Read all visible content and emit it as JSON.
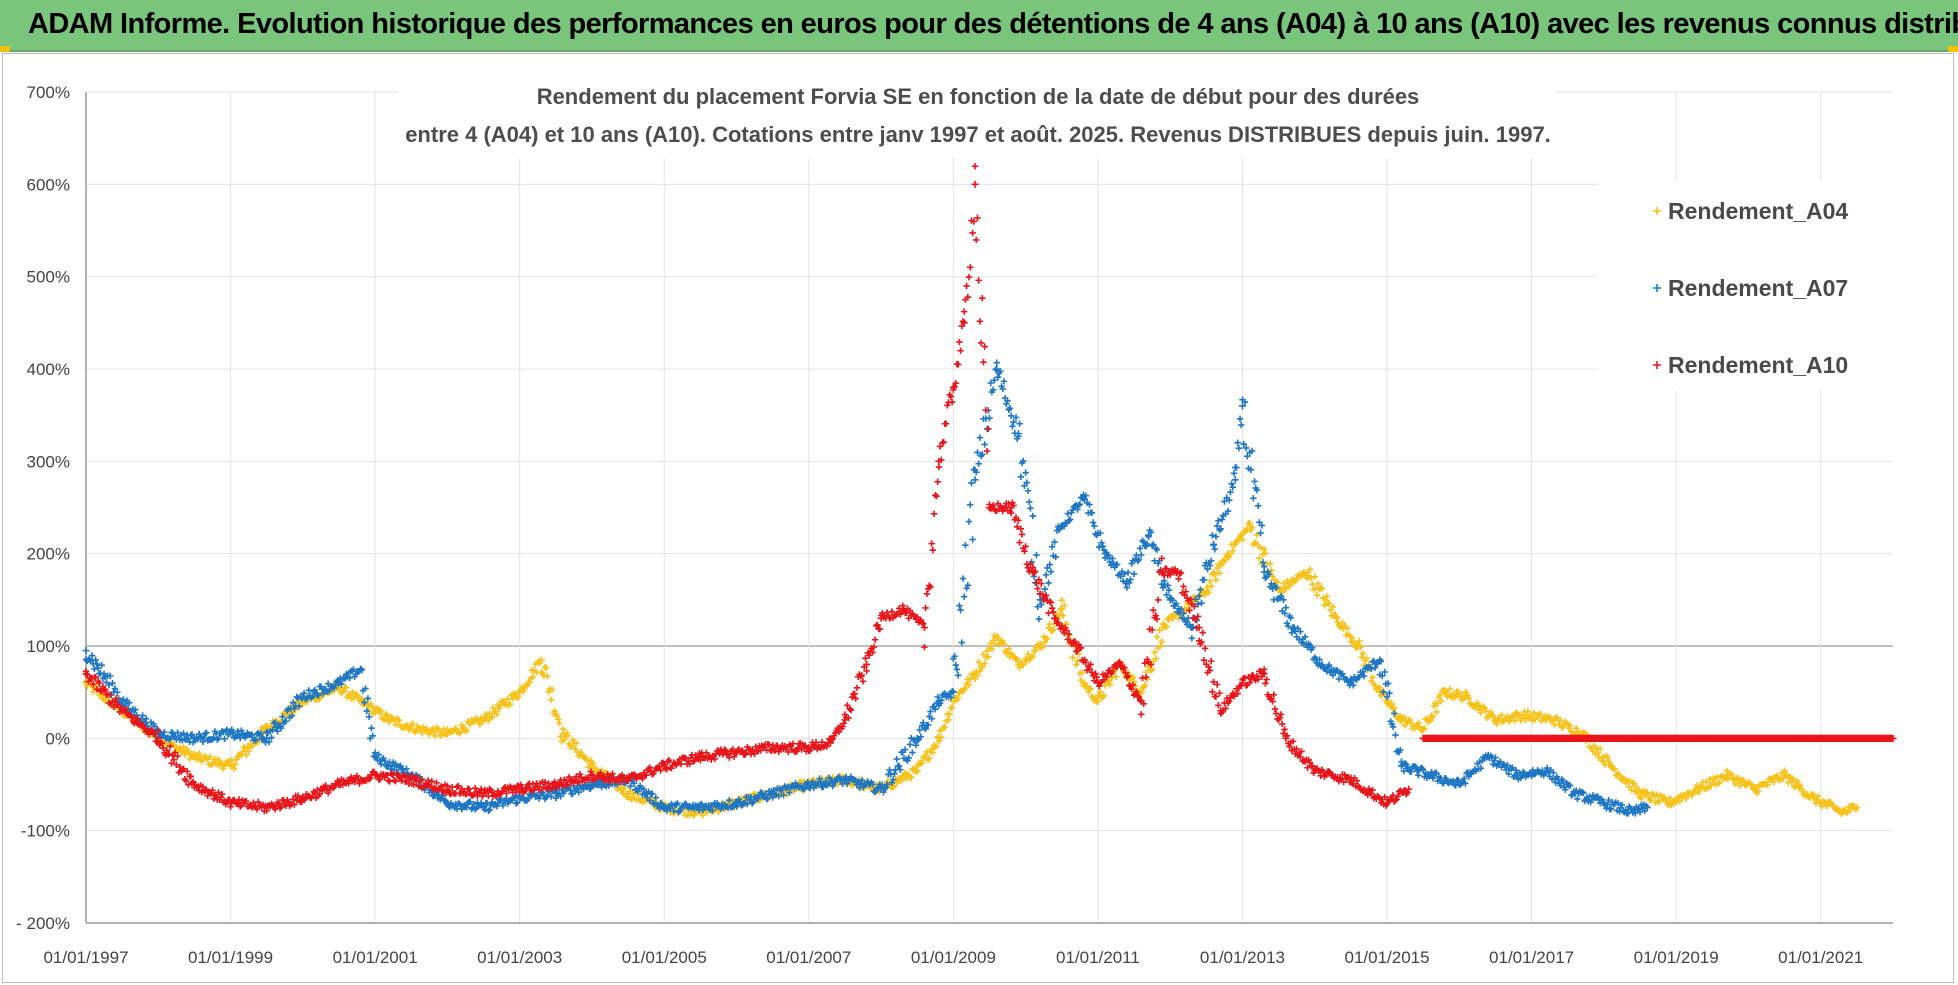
{
  "banner": {
    "title": "ADAM Informe. Evolution historique des performances en euros pour des détentions de 4 ans (A04) à 10 ans (A10) avec les revenus connus distribués"
  },
  "colors": {
    "banner_bg": "#79c57b",
    "A04": "#f7c21a",
    "A07": "#1f77c4",
    "A10": "#e8151b"
  },
  "chart_data": {
    "type": "scatter",
    "title_line1": "Rendement du placement Forvia SE en fonction de la date de début pour des durées",
    "title_line2": "entre 4 (A04) et 10 ans (A10).  Cotations entre janv 1997 et août. 2025. Revenus DISTRIBUES depuis juin. 1997.",
    "x_unit": "year",
    "xlim": [
      1997.0,
      2022.0
    ],
    "ylim": [
      -200,
      700
    ],
    "y_unit": "%",
    "grid": true,
    "legend_position": "top-right",
    "y_ticks": [
      "- 200%",
      "-100%",
      "0%",
      "100%",
      "200%",
      "300%",
      "400%",
      "500%",
      "600%",
      "700%"
    ],
    "x_ticks": [
      "01/01/1997",
      "01/01/1999",
      "01/01/2001",
      "01/01/2003",
      "01/01/2005",
      "01/01/2007",
      "01/01/2009",
      "01/01/2011",
      "01/01/2013",
      "01/01/2015",
      "01/01/2017",
      "01/01/2019",
      "01/01/2021"
    ],
    "series": [
      {
        "name": "Rendement_A04",
        "color": "#f7c21a",
        "x": [
          1997.0,
          1997.5,
          1998.0,
          1998.5,
          1999.0,
          1999.5,
          2000.0,
          2000.5,
          2000.9,
          2001.2,
          2001.6,
          2002.0,
          2002.5,
          2003.0,
          2003.3,
          2003.6,
          2004.0,
          2004.5,
          2005.0,
          2005.5,
          2006.0,
          2006.5,
          2007.0,
          2007.5,
          2008.0,
          2008.5,
          2008.8,
          2009.0,
          2009.3,
          2009.6,
          2009.9,
          2010.2,
          2010.5,
          2010.8,
          2011.0,
          2011.3,
          2011.6,
          2011.9,
          2012.2,
          2012.5,
          2012.8,
          2013.1,
          2013.5,
          2013.9,
          2014.3,
          2014.6,
          2014.9,
          2015.2,
          2015.5,
          2015.8,
          2016.1,
          2016.5,
          2016.9,
          2017.3,
          2017.7,
          2018.1,
          2018.5,
          2018.9,
          2019.3,
          2019.7,
          2020.1,
          2020.5,
          2020.9,
          2021.3,
          2021.5
        ],
        "y": [
          60,
          30,
          0,
          -20,
          -30,
          10,
          40,
          55,
          35,
          20,
          10,
          5,
          20,
          50,
          85,
          5,
          -30,
          -60,
          -75,
          -80,
          -70,
          -60,
          -50,
          -45,
          -55,
          -35,
          0,
          40,
          70,
          110,
          80,
          100,
          140,
          60,
          40,
          80,
          50,
          120,
          140,
          160,
          200,
          230,
          160,
          180,
          130,
          100,
          50,
          20,
          10,
          50,
          45,
          20,
          25,
          20,
          5,
          -30,
          -60,
          -70,
          -55,
          -40,
          -55,
          -40,
          -65,
          -80,
          -75
        ]
      },
      {
        "name": "Rendement_A07",
        "color": "#1f77c4",
        "x": [
          1997.0,
          1997.5,
          1998.0,
          1998.5,
          1999.0,
          1999.5,
          2000.0,
          2000.5,
          2000.8,
          2001.0,
          2001.5,
          2002.0,
          2002.5,
          2003.0,
          2003.5,
          2004.0,
          2004.5,
          2005.0,
          2005.5,
          2006.0,
          2006.5,
          2007.0,
          2007.5,
          2008.0,
          2008.5,
          2008.8,
          2009.0,
          2009.3,
          2009.6,
          2009.9,
          2010.2,
          2010.5,
          2010.8,
          2011.1,
          2011.4,
          2011.7,
          2012.0,
          2012.3,
          2012.6,
          2012.9,
          2013.0,
          2013.3,
          2013.7,
          2014.1,
          2014.5,
          2014.9,
          2015.2,
          2015.6,
          2016.0,
          2016.4,
          2016.8,
          2017.2,
          2017.6,
          2018.0,
          2018.4,
          2018.6
        ],
        "y": [
          95,
          40,
          5,
          0,
          5,
          0,
          45,
          60,
          75,
          -20,
          -40,
          -70,
          -75,
          -65,
          -60,
          -50,
          -45,
          -75,
          -75,
          -70,
          -60,
          -50,
          -45,
          -55,
          0,
          40,
          50,
          280,
          400,
          330,
          150,
          230,
          260,
          200,
          170,
          220,
          150,
          120,
          210,
          280,
          360,
          180,
          120,
          80,
          60,
          85,
          -30,
          -40,
          -50,
          -20,
          -40,
          -35,
          -60,
          -70,
          -80,
          -75
        ]
      },
      {
        "name": "Rendement_A10",
        "color": "#e8151b",
        "x": [
          1997.0,
          1997.5,
          1998.0,
          1998.5,
          1999.0,
          1999.5,
          2000.0,
          2000.5,
          2001.0,
          2001.5,
          2002.0,
          2002.5,
          2003.0,
          2003.5,
          2004.0,
          2004.5,
          2005.0,
          2005.5,
          2006.0,
          2006.5,
          2007.0,
          2007.3,
          2007.5,
          2007.8,
          2008.0,
          2008.3,
          2008.6,
          2008.8,
          2009.0,
          2009.15,
          2009.3,
          2009.5,
          2009.8,
          2010.1,
          2010.4,
          2010.7,
          2011.0,
          2011.3,
          2011.6,
          2011.9,
          2012.1,
          2012.4,
          2012.7,
          2013.0,
          2013.3,
          2013.6,
          2014.0,
          2014.5,
          2015.0,
          2015.3
        ],
        "y": [
          70,
          30,
          0,
          -50,
          -70,
          -75,
          -65,
          -50,
          -40,
          -45,
          -55,
          -60,
          -55,
          -50,
          -40,
          -45,
          -30,
          -20,
          -15,
          -10,
          -10,
          -5,
          20,
          80,
          130,
          140,
          120,
          300,
          380,
          450,
          600,
          250,
          250,
          180,
          130,
          100,
          60,
          80,
          40,
          180,
          180,
          120,
          30,
          60,
          70,
          0,
          -35,
          -45,
          -70,
          -55
        ]
      },
      {
        "name": "",
        "color": "#e8151b",
        "x": [
          2015.5,
          2022.0
        ],
        "y": [
          0,
          0
        ]
      }
    ]
  },
  "legend": [
    "Rendement_A04",
    "Rendement_A07",
    "Rendement_A10"
  ]
}
